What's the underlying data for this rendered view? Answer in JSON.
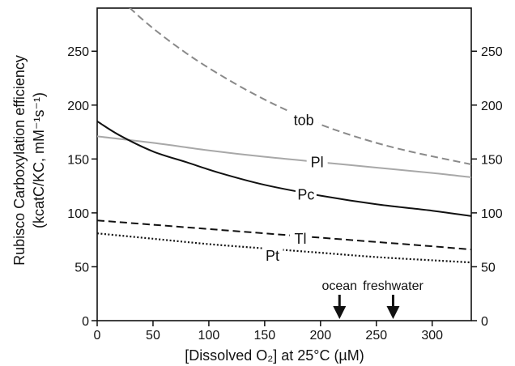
{
  "chart_data": {
    "type": "line",
    "xlabel": "[Dissolved O₂] at 25°C (µM)",
    "ylabel": {
      "line1": "Rubisco Carboxylation efficiency",
      "line2": "(kcatC/KC, mM⁻¹s⁻¹)"
    },
    "xlim": [
      0,
      335
    ],
    "ylim": [
      0,
      290
    ],
    "x_ticks": [
      0,
      50,
      100,
      150,
      200,
      250,
      300
    ],
    "y_ticks": [
      0,
      50,
      100,
      150,
      200,
      250
    ],
    "right_tick_labels": [
      "0",
      "50",
      "100",
      "150",
      "200",
      "250"
    ],
    "series": [
      {
        "name": "tob",
        "style": "dashed",
        "color": "#8a8a8a",
        "x": [
          0,
          40,
          80,
          120,
          160,
          200,
          240,
          280,
          335
        ],
        "y": [
          320,
          280,
          248,
          222,
          200,
          182,
          168,
          157,
          145
        ],
        "label_at": [
          185,
          186
        ]
      },
      {
        "name": "Pl",
        "style": "solid",
        "color": "#a8a8a8",
        "x": [
          0,
          50,
          100,
          150,
          200,
          250,
          300,
          335
        ],
        "y": [
          171,
          165,
          158,
          152,
          147,
          142,
          137,
          133
        ],
        "label_at": [
          197,
          147
        ]
      },
      {
        "name": "Pc",
        "style": "solid",
        "color": "#111111",
        "x": [
          0,
          20,
          50,
          80,
          110,
          150,
          200,
          250,
          300,
          335
        ],
        "y": [
          185,
          172,
          157,
          147,
          137,
          126,
          116,
          108,
          102,
          97
        ],
        "label_at": [
          187,
          117
        ]
      },
      {
        "name": "Tl",
        "style": "dashed",
        "color": "#111111",
        "x": [
          0,
          50,
          100,
          150,
          200,
          250,
          300,
          335
        ],
        "y": [
          93,
          89,
          85,
          81,
          77,
          73,
          69,
          66
        ],
        "label_at": [
          182,
          76
        ]
      },
      {
        "name": "Pt",
        "style": "dotted",
        "color": "#111111",
        "x": [
          0,
          50,
          100,
          150,
          200,
          250,
          300,
          335
        ],
        "y": [
          81,
          76,
          71,
          67,
          63,
          59,
          56,
          54
        ],
        "label_at": [
          157,
          60
        ]
      }
    ],
    "markers": [
      {
        "name": "ocean",
        "x": 217
      },
      {
        "name": "freshwater",
        "x": 265
      }
    ],
    "grid": false,
    "legend": "none"
  }
}
